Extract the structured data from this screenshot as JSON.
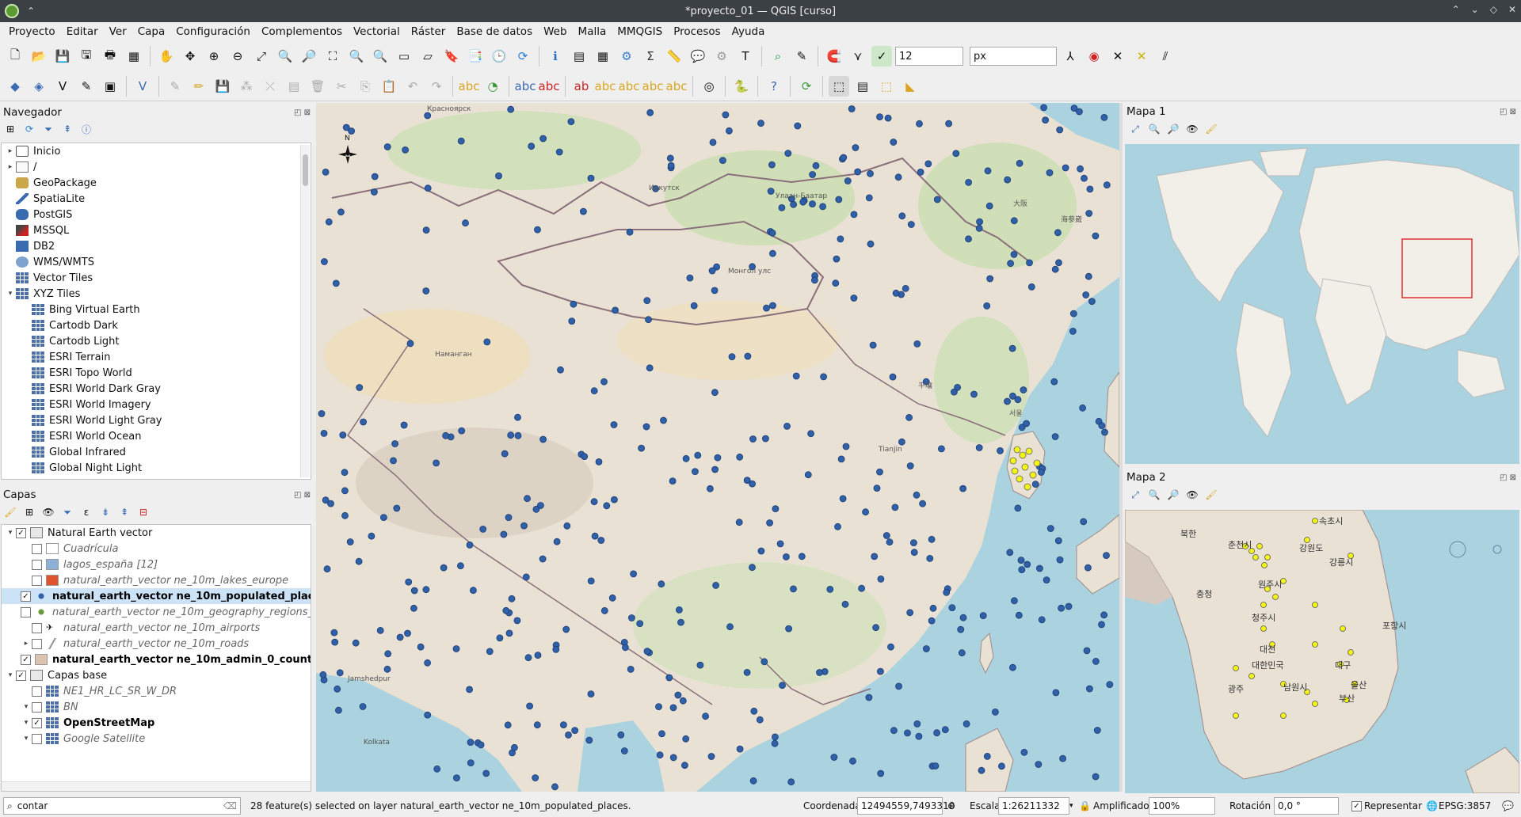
{
  "window": {
    "title": "*proyecto_01 — QGIS [curso]"
  },
  "menu": [
    "Proyecto",
    "Editar",
    "Ver",
    "Capa",
    "Configuración",
    "Complementos",
    "Vectorial",
    "Ráster",
    "Base de datos",
    "Web",
    "Malla",
    "MMQGIS",
    "Procesos",
    "Ayuda"
  ],
  "toolbar": {
    "snap_tolerance": "12",
    "snap_units": "px"
  },
  "navigator": {
    "title": "Navegador",
    "items": [
      {
        "label": "Inicio",
        "icon": "home-icon",
        "level": 0,
        "arrow": "▸"
      },
      {
        "label": "/",
        "icon": "folder-icon",
        "level": 0,
        "arrow": "▸"
      },
      {
        "label": "GeoPackage",
        "icon": "geopackage-icon",
        "level": 0,
        "arrow": ""
      },
      {
        "label": "SpatiaLite",
        "icon": "spatialite-icon",
        "level": 0,
        "arrow": ""
      },
      {
        "label": "PostGIS",
        "icon": "postgis-icon",
        "level": 0,
        "arrow": ""
      },
      {
        "label": "MSSQL",
        "icon": "mssql-icon",
        "level": 0,
        "arrow": ""
      },
      {
        "label": "DB2",
        "icon": "db2-icon",
        "level": 0,
        "arrow": ""
      },
      {
        "label": "WMS/WMTS",
        "icon": "globe-icon",
        "level": 0,
        "arrow": ""
      },
      {
        "label": "Vector Tiles",
        "icon": "grid-icon",
        "level": 0,
        "arrow": ""
      },
      {
        "label": "XYZ Tiles",
        "icon": "grid-icon",
        "level": 0,
        "arrow": "▾"
      },
      {
        "label": "Bing Virtual Earth",
        "icon": "grid-icon",
        "level": 1,
        "arrow": ""
      },
      {
        "label": "Cartodb Dark",
        "icon": "grid-icon",
        "level": 1,
        "arrow": ""
      },
      {
        "label": "Cartodb Light",
        "icon": "grid-icon",
        "level": 1,
        "arrow": ""
      },
      {
        "label": "ESRI Terrain",
        "icon": "grid-icon",
        "level": 1,
        "arrow": ""
      },
      {
        "label": "ESRI Topo World",
        "icon": "grid-icon",
        "level": 1,
        "arrow": ""
      },
      {
        "label": "ESRI World Dark Gray",
        "icon": "grid-icon",
        "level": 1,
        "arrow": ""
      },
      {
        "label": "ESRI World Imagery",
        "icon": "grid-icon",
        "level": 1,
        "arrow": ""
      },
      {
        "label": "ESRI World Light Gray",
        "icon": "grid-icon",
        "level": 1,
        "arrow": ""
      },
      {
        "label": "ESRI World Ocean",
        "icon": "grid-icon",
        "level": 1,
        "arrow": ""
      },
      {
        "label": "Global Infrared",
        "icon": "grid-icon",
        "level": 1,
        "arrow": ""
      },
      {
        "label": "Global Night Light",
        "icon": "grid-icon",
        "level": 1,
        "arrow": ""
      }
    ]
  },
  "layers": {
    "title": "Capas",
    "items": [
      {
        "label": "Natural Earth vector",
        "level": 0,
        "checked": true,
        "arrow": "▾",
        "style": "normal",
        "swatch": "group"
      },
      {
        "label": "Cuadrícula",
        "level": 1,
        "checked": false,
        "arrow": "",
        "style": "ital",
        "swatch": "#ffffff"
      },
      {
        "label": "lagos_españa [12]",
        "level": 1,
        "checked": false,
        "arrow": "",
        "style": "ital",
        "swatch": "#8fb0d6"
      },
      {
        "label": "natural_earth_vector ne_10m_lakes_europe",
        "level": 1,
        "checked": false,
        "arrow": "",
        "style": "ital",
        "swatch": "#e0532c"
      },
      {
        "label": "natural_earth_vector ne_10m_populated_places",
        "level": 1,
        "checked": true,
        "arrow": "",
        "style": "bold",
        "swatch": "dot-blue",
        "selected": true
      },
      {
        "label": "natural_earth_vector ne_10m_geography_regions_",
        "level": 1,
        "checked": false,
        "arrow": "",
        "style": "ital",
        "swatch": "dot-green"
      },
      {
        "label": "natural_earth_vector ne_10m_airports",
        "level": 1,
        "checked": false,
        "arrow": "",
        "style": "ital",
        "swatch": "plane"
      },
      {
        "label": "natural_earth_vector ne_10m_roads",
        "level": 1,
        "checked": false,
        "arrow": "▸",
        "style": "ital",
        "swatch": "line"
      },
      {
        "label": "natural_earth_vector ne_10m_admin_0_countries",
        "level": 1,
        "checked": true,
        "arrow": "",
        "style": "bold",
        "swatch": "#dcc3b0"
      },
      {
        "label": "Capas base",
        "level": 0,
        "checked": true,
        "arrow": "▾",
        "style": "normal",
        "swatch": "group"
      },
      {
        "label": "NE1_HR_LC_SR_W_DR",
        "level": 1,
        "checked": false,
        "arrow": "",
        "style": "ital",
        "swatch": "raster"
      },
      {
        "label": "BN",
        "level": 1,
        "checked": false,
        "arrow": "▾",
        "style": "ital",
        "swatch": "raster"
      },
      {
        "label": "OpenStreetMap",
        "level": 1,
        "checked": true,
        "arrow": "▾",
        "style": "bold",
        "swatch": "raster"
      },
      {
        "label": "Google Satellite",
        "level": 1,
        "checked": false,
        "arrow": "▾",
        "style": "ital",
        "swatch": "raster"
      }
    ]
  },
  "locator": {
    "value": "contar"
  },
  "status": {
    "message": "28 feature(s) selected on layer natural_earth_vector ne_10m_populated_places.",
    "coord_label": "Coordenada",
    "coord_value": "12494559,7493310",
    "scale_label": "Escala",
    "scale_value": "1:26211332",
    "magnifier_label": "Amplificador",
    "magnifier_value": "100%",
    "rotation_label": "Rotación",
    "rotation_value": "0,0 °",
    "render_label": "Representar",
    "crs": "EPSG:3857"
  },
  "map1": {
    "title": "Mapa 1"
  },
  "map2": {
    "title": "Mapa 2"
  },
  "main_map_labels": [
    "Монгол улс",
    "Красноярск",
    "Иркутск",
    "Улаан-Баатар",
    "大阪",
    "海参崴",
    "서울",
    "平壤",
    "Jamshedpur",
    "Kolkata",
    "Tianjin",
    "Наманган"
  ],
  "map2_labels": [
    "속초시",
    "강릉시",
    "춘천시",
    "원주시",
    "청주시",
    "대전",
    "대구",
    "대한민국",
    "광주",
    "남원시",
    "부산",
    "울산",
    "북한",
    "강원도",
    "충청",
    "포항시"
  ],
  "colors": {
    "accent": "#3060a8",
    "selection": "#f5f514",
    "water": "#aad3df",
    "land": "#e8e1d4"
  }
}
